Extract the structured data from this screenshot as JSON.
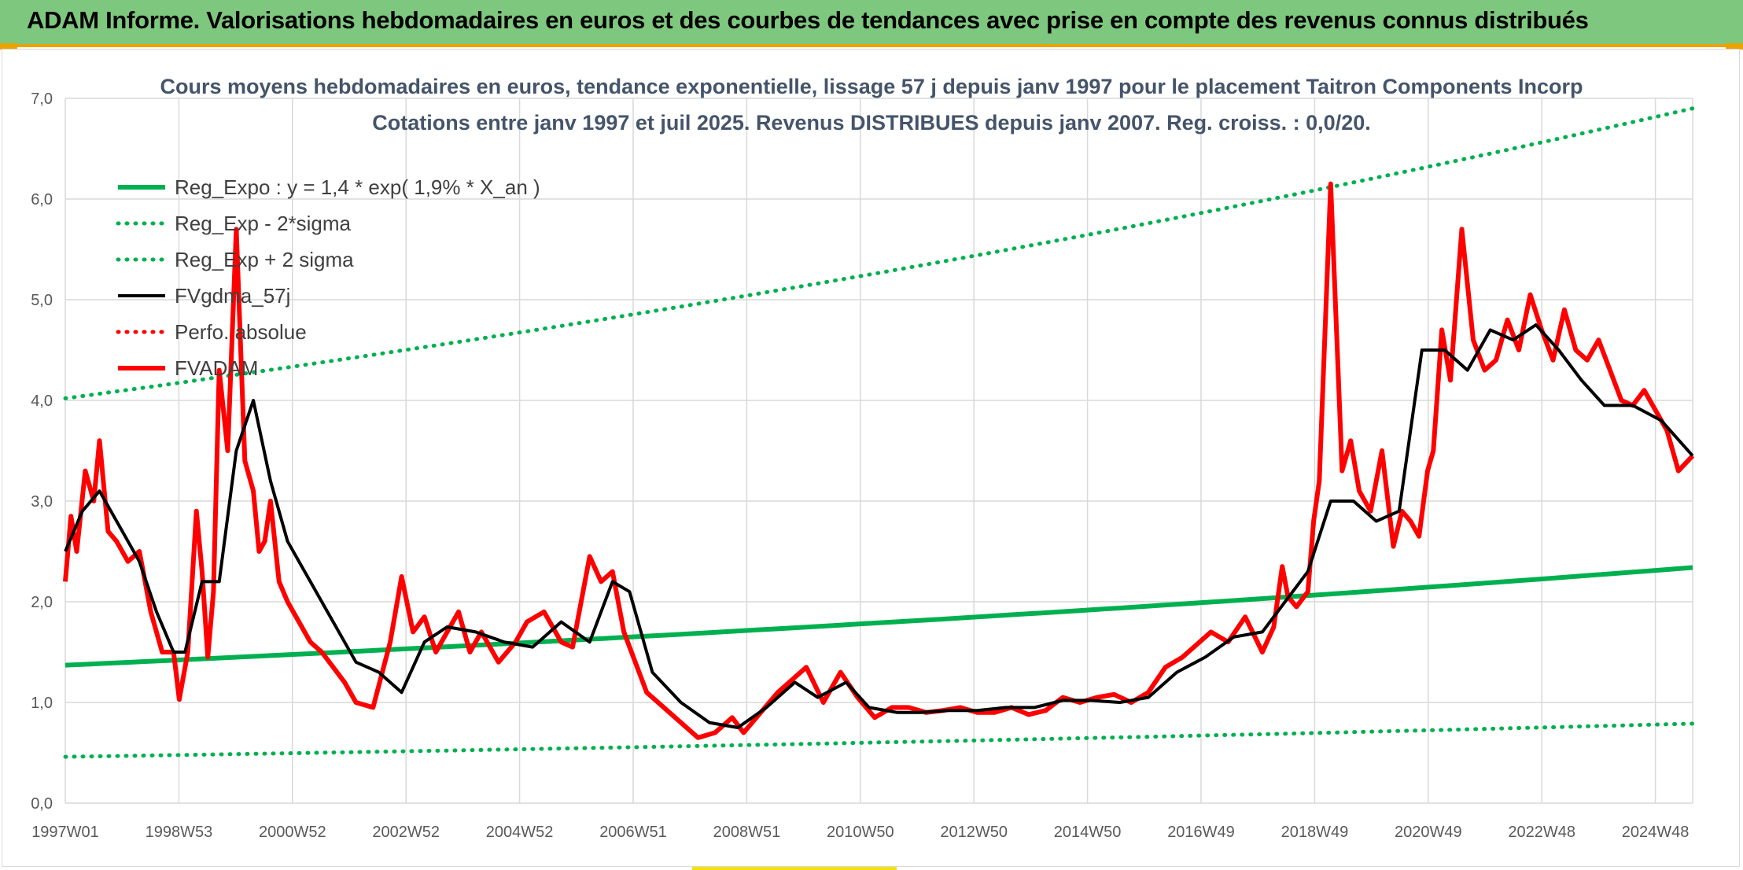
{
  "header": {
    "title": "ADAM Informe. Valorisations hebdomadaires en euros et des courbes de tendances avec prise en compte des revenus connus distribués"
  },
  "colors": {
    "banner": "#7ec77e",
    "accent": "#e9a400",
    "trend_green": "#00b050",
    "price_red": "#ff0000",
    "smooth_black": "#000000"
  },
  "chart_data": {
    "type": "line",
    "title_lines": [
      "Cours moyens hebdomadaires en euros, tendance exponentielle, lissage 57 j depuis janv 1997 pour le placement Taitron Components Incorp",
      "Cotations entre janv 1997 et juil 2025. Revenus DISTRIBUES depuis janv 2007. Reg. croiss. : 0,0/20."
    ],
    "ylim": [
      0,
      7
    ],
    "y_ticks": [
      "0,0",
      "1,0",
      "2,0",
      "3,0",
      "4,0",
      "5,0",
      "6,0",
      "7,0"
    ],
    "x_ticks": [
      "1997W01",
      "1998W53",
      "2000W52",
      "2002W52",
      "2004W52",
      "2006W51",
      "2008W51",
      "2010W50",
      "2012W50",
      "2014W50",
      "2016W49",
      "2018W49",
      "2020W49",
      "2022W48",
      "2024W48"
    ],
    "x_range_years": [
      1997.0,
      2025.55
    ],
    "grid": "on",
    "legend_position": "top-left",
    "series": [
      {
        "name": "Reg_Expo : y = 1,4 * exp( 1,9% *  X_an )",
        "style": "solid-thick",
        "color": "#00b050",
        "x": [
          1997.0,
          2025.55
        ],
        "y": [
          1.37,
          2.34
        ]
      },
      {
        "name": "Reg_Exp - 2*sigma",
        "style": "dotted",
        "color": "#00b050",
        "x": [
          1997.0,
          2025.55
        ],
        "y": [
          0.46,
          0.79
        ]
      },
      {
        "name": "Reg_Exp + 2 sigma",
        "style": "dotted",
        "color": "#00b050",
        "x": [
          1997.0,
          2025.55
        ],
        "y": [
          4.02,
          6.9
        ]
      },
      {
        "name": "FVgdma_57j",
        "style": "solid",
        "color": "#000000",
        "x": [
          1997.0,
          1997.3,
          1997.6,
          1998.0,
          1998.3,
          1998.6,
          1998.9,
          1999.1,
          1999.4,
          1999.7,
          2000.0,
          2000.3,
          2000.6,
          2000.9,
          2001.3,
          2001.7,
          2002.1,
          2002.5,
          2002.9,
          2003.3,
          2003.7,
          2004.2,
          2004.7,
          2005.2,
          2005.7,
          2006.2,
          2006.6,
          2006.9,
          2007.3,
          2007.8,
          2008.3,
          2008.8,
          2009.3,
          2009.8,
          2010.2,
          2010.7,
          2011.1,
          2011.6,
          2012.0,
          2012.5,
          2013.0,
          2013.5,
          2014.0,
          2014.5,
          2015.0,
          2015.5,
          2016.0,
          2016.5,
          2017.0,
          2017.5,
          2018.0,
          2018.4,
          2018.8,
          2019.2,
          2019.6,
          2020.0,
          2020.4,
          2020.8,
          2021.2,
          2021.6,
          2022.0,
          2022.4,
          2022.8,
          2023.2,
          2023.6,
          2024.0,
          2024.5,
          2025.0,
          2025.55
        ],
        "y": [
          2.5,
          2.9,
          3.1,
          2.7,
          2.4,
          1.9,
          1.5,
          1.5,
          2.2,
          2.2,
          3.5,
          4.0,
          3.2,
          2.6,
          2.2,
          1.8,
          1.4,
          1.3,
          1.1,
          1.6,
          1.75,
          1.7,
          1.6,
          1.55,
          1.8,
          1.6,
          2.2,
          2.1,
          1.3,
          1.0,
          0.8,
          0.75,
          0.95,
          1.2,
          1.05,
          1.2,
          0.95,
          0.9,
          0.9,
          0.92,
          0.92,
          0.95,
          0.95,
          1.02,
          1.02,
          1.0,
          1.05,
          1.3,
          1.45,
          1.65,
          1.7,
          2.0,
          2.3,
          3.0,
          3.0,
          2.8,
          2.9,
          4.5,
          4.5,
          4.3,
          4.7,
          4.6,
          4.75,
          4.5,
          4.2,
          3.95,
          3.95,
          3.8,
          3.45
        ]
      },
      {
        "name": "Perfo. absolue",
        "style": "dotted",
        "color": "#ff0000",
        "x": [],
        "y": []
      },
      {
        "name": "FVADAM",
        "style": "solid-thick",
        "color": "#ff0000",
        "x": [
          1997.0,
          1997.1,
          1997.2,
          1997.35,
          1997.5,
          1997.6,
          1997.75,
          1997.9,
          1998.1,
          1998.3,
          1998.5,
          1998.7,
          1998.9,
          1999.0,
          1999.15,
          1999.3,
          1999.4,
          1999.5,
          1999.6,
          1999.7,
          1999.85,
          2000.0,
          2000.15,
          2000.3,
          2000.4,
          2000.5,
          2000.6,
          2000.75,
          2000.9,
          2001.1,
          2001.3,
          2001.5,
          2001.7,
          2001.9,
          2002.1,
          2002.4,
          2002.7,
          2002.9,
          2003.1,
          2003.3,
          2003.5,
          2003.7,
          2003.9,
          2004.1,
          2004.3,
          2004.6,
          2004.9,
          2005.1,
          2005.4,
          2005.7,
          2005.9,
          2006.2,
          2006.4,
          2006.6,
          2006.8,
          2007.0,
          2007.2,
          2007.5,
          2007.8,
          2008.1,
          2008.4,
          2008.7,
          2008.9,
          2009.2,
          2009.5,
          2009.8,
          2010.0,
          2010.3,
          2010.6,
          2010.9,
          2011.2,
          2011.5,
          2011.8,
          2012.1,
          2012.4,
          2012.7,
          2013.0,
          2013.3,
          2013.6,
          2013.9,
          2014.2,
          2014.5,
          2014.8,
          2015.1,
          2015.4,
          2015.7,
          2016.0,
          2016.3,
          2016.6,
          2016.9,
          2017.1,
          2017.4,
          2017.7,
          2018.0,
          2018.2,
          2018.35,
          2018.45,
          2018.6,
          2018.8,
          2018.9,
          2019.0,
          2019.2,
          2019.4,
          2019.55,
          2019.7,
          2019.9,
          2020.1,
          2020.3,
          2020.45,
          2020.6,
          2020.75,
          2020.9,
          2021.0,
          2021.15,
          2021.3,
          2021.5,
          2021.7,
          2021.9,
          2022.1,
          2022.3,
          2022.5,
          2022.7,
          2022.9,
          2023.1,
          2023.3,
          2023.5,
          2023.7,
          2023.9,
          2024.1,
          2024.3,
          2024.5,
          2024.7,
          2024.9,
          2025.1,
          2025.3,
          2025.55
        ],
        "y": [
          2.2,
          2.85,
          2.5,
          3.3,
          3.0,
          3.6,
          2.7,
          2.6,
          2.4,
          2.5,
          1.9,
          1.5,
          1.5,
          1.03,
          1.5,
          2.9,
          2.3,
          1.45,
          2.1,
          4.3,
          3.5,
          5.7,
          3.4,
          3.1,
          2.5,
          2.6,
          3.0,
          2.2,
          2.0,
          1.8,
          1.6,
          1.5,
          1.35,
          1.2,
          1.0,
          0.95,
          1.6,
          2.25,
          1.7,
          1.85,
          1.5,
          1.7,
          1.9,
          1.5,
          1.7,
          1.4,
          1.6,
          1.8,
          1.9,
          1.6,
          1.55,
          2.45,
          2.2,
          2.3,
          1.7,
          1.4,
          1.1,
          0.95,
          0.8,
          0.65,
          0.7,
          0.85,
          0.7,
          0.9,
          1.1,
          1.25,
          1.35,
          1.0,
          1.3,
          1.05,
          0.85,
          0.95,
          0.95,
          0.9,
          0.92,
          0.95,
          0.9,
          0.9,
          0.95,
          0.88,
          0.92,
          1.05,
          1.0,
          1.05,
          1.08,
          1.0,
          1.1,
          1.35,
          1.45,
          1.6,
          1.7,
          1.6,
          1.85,
          1.5,
          1.75,
          2.35,
          2.05,
          1.95,
          2.1,
          2.8,
          3.2,
          6.15,
          3.3,
          3.6,
          3.1,
          2.9,
          3.5,
          2.55,
          2.9,
          2.8,
          2.65,
          3.3,
          3.5,
          4.7,
          4.2,
          5.7,
          4.6,
          4.3,
          4.4,
          4.8,
          4.5,
          5.05,
          4.7,
          4.4,
          4.9,
          4.5,
          4.4,
          4.6,
          4.3,
          4.0,
          3.95,
          4.1,
          3.9,
          3.7,
          3.3,
          3.45
        ]
      }
    ]
  }
}
